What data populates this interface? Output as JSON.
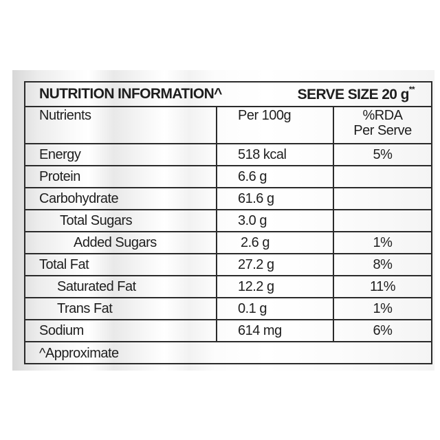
{
  "header": {
    "title": "NUTRITION INFORMATION^",
    "serve_size": "SERVE SIZE 20 g",
    "serve_size_mark": "**"
  },
  "columns": {
    "nutrients": "Nutrients",
    "per_100g": "Per 100g",
    "rda_line1": "%RDA",
    "rda_line2": "Per Serve"
  },
  "rows": [
    {
      "nutrient": "Energy",
      "per_100g": "518 kcal",
      "rda": "5%"
    },
    {
      "nutrient": "Protein",
      "per_100g": "6.6 g",
      "rda": ""
    },
    {
      "nutrient": "Carbohydrate",
      "per_100g": "61.6 g",
      "rda": ""
    },
    {
      "nutrient": "Total Sugars",
      "per_100g": "3.0 g",
      "rda": ""
    },
    {
      "nutrient": "Added Sugars",
      "per_100g": "2.6 g",
      "rda": "1%"
    },
    {
      "nutrient": "Total Fat",
      "per_100g": "27.2 g",
      "rda": "8%"
    },
    {
      "nutrient": "Saturated Fat",
      "per_100g": "12.2 g",
      "rda": "11%"
    },
    {
      "nutrient": "Trans Fat",
      "per_100g": "0.1 g",
      "rda": "1%"
    },
    {
      "nutrient": "Sodium",
      "per_100g": "614 mg",
      "rda": "6%"
    }
  ],
  "footnote": "^Approximate"
}
